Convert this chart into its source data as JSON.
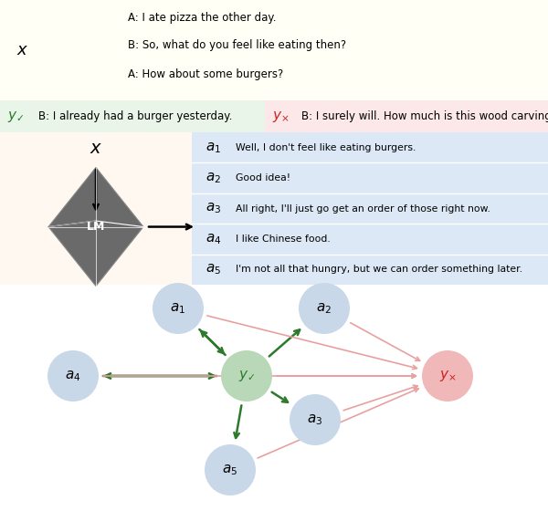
{
  "top_panel_bg": "#fffff5",
  "top_context_lines": [
    "A: I ate pizza the other day.",
    "B: So, what do you feel like eating then?",
    "A: How about some burgers?"
  ],
  "y_good_bg": "#e8f5e8",
  "y_bad_bg": "#fce8e8",
  "y_good_text": "B: I already had a burger yesterday.",
  "y_bad_text": "B: I surely will. How much is this wood carving?",
  "middle_panel_bg": "#fff8f0",
  "alternatives": [
    [
      "1",
      "Well, I don't feel like eating burgers."
    ],
    [
      "2",
      "Good idea!"
    ],
    [
      "3",
      "All right, I'll just go get an order of those right now."
    ],
    [
      "4",
      "I like Chinese food."
    ],
    [
      "5",
      "I'm not all that hungry, but we can order something later."
    ]
  ],
  "alt_bg": "#dce8f5",
  "node_y_good_color": "#b8d8b8",
  "node_y_bad_color": "#f0b8b8",
  "node_a_color": "#c8d8e8",
  "green_arrow_color": "#2d7a2d",
  "pink_arrow_color": "#e8a0a0",
  "green_check_color": "#2d7a2d",
  "red_x_color": "#cc2222"
}
